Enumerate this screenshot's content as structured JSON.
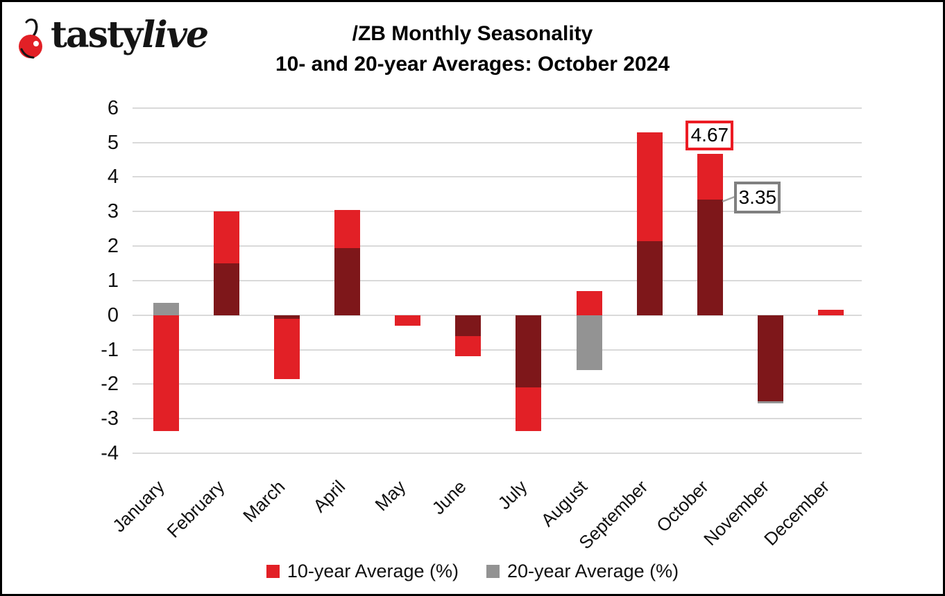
{
  "logo": {
    "brand_primary": "tasty",
    "brand_secondary": "live",
    "icon": "cherry-icon"
  },
  "title": {
    "line1": "/ZB Monthly Seasonality",
    "line2": "10- and 20-year Averages: October 2024"
  },
  "chart_data": {
    "type": "bar",
    "title": "/ZB Monthly Seasonality 10- and 20-year Averages: October 2024",
    "categories": [
      "January",
      "February",
      "March",
      "April",
      "May",
      "June",
      "July",
      "August",
      "September",
      "October",
      "November",
      "December"
    ],
    "series": [
      {
        "name": "10-year Average (%)",
        "color": "#E22026",
        "values": [
          -3.35,
          3.0,
          -1.85,
          3.05,
          -0.3,
          -1.2,
          -3.35,
          0.7,
          5.3,
          4.67,
          -2.5,
          0.15
        ]
      },
      {
        "name": "20-year Average (%)",
        "color": "#939393",
        "values": [
          0.35,
          1.5,
          -0.1,
          1.95,
          0,
          -0.6,
          -2.1,
          -1.6,
          2.15,
          3.35,
          -2.55,
          0
        ]
      }
    ],
    "overlap_color": "#7E171A",
    "ylim": [
      -4,
      6
    ],
    "yticks": [
      6,
      5,
      4,
      3,
      2,
      1,
      0,
      -1,
      -2,
      -3,
      -4
    ],
    "grid": true,
    "legend_position": "bottom",
    "annotations": [
      {
        "text": "4.67",
        "value": 4.67,
        "month_index": 9,
        "placement": "above-bar",
        "border_color": "#EC1C24"
      },
      {
        "text": "3.35",
        "value": 3.35,
        "month_index": 9,
        "placement": "right-leader",
        "border_color": "#808080"
      }
    ]
  },
  "legend": {
    "items": [
      {
        "label": "10-year Average (%)",
        "color": "#E22026"
      },
      {
        "label": "20-year Average (%)",
        "color": "#939393"
      }
    ]
  },
  "colors": {
    "bar_red": "#E22026",
    "bar_gray": "#939393",
    "bar_overlap": "#7E171A",
    "gridline": "#D9D9D9",
    "callout_red_border": "#EC1C24",
    "callout_gray_border": "#808080",
    "leader_line": "#A6A6A6",
    "cherry_red": "#E22026"
  }
}
